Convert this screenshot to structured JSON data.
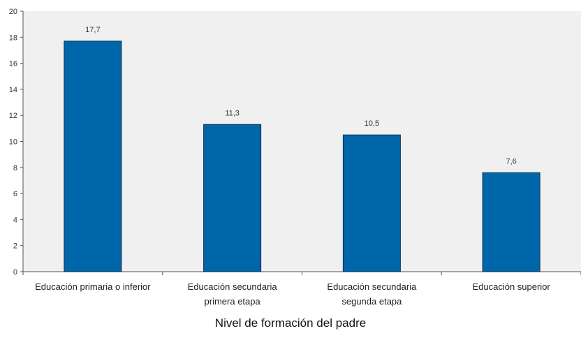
{
  "chart_data": {
    "type": "bar",
    "title": "",
    "xlabel": "Nivel de formación del padre",
    "ylabel": "",
    "categories": [
      [
        "Educación primaria o inferior"
      ],
      [
        "Educación secundaria",
        "primera etapa"
      ],
      [
        "Educación secundaria",
        "segunda etapa"
      ],
      [
        "Educación superior"
      ]
    ],
    "values": [
      17.7,
      11.3,
      10.5,
      7.6
    ],
    "value_labels": [
      "17,7",
      "11,3",
      "10,5",
      "7,6"
    ],
    "ylim": [
      0,
      20
    ],
    "yticks": [
      0,
      2,
      4,
      6,
      8,
      10,
      12,
      14,
      16,
      18,
      20
    ],
    "grid": false,
    "legend": "none",
    "colors": {
      "plot_background": "#f0f0f0",
      "bar_fill": "#0066aa",
      "bar_stroke": "#0a2a4a",
      "axis": "#555555"
    }
  }
}
